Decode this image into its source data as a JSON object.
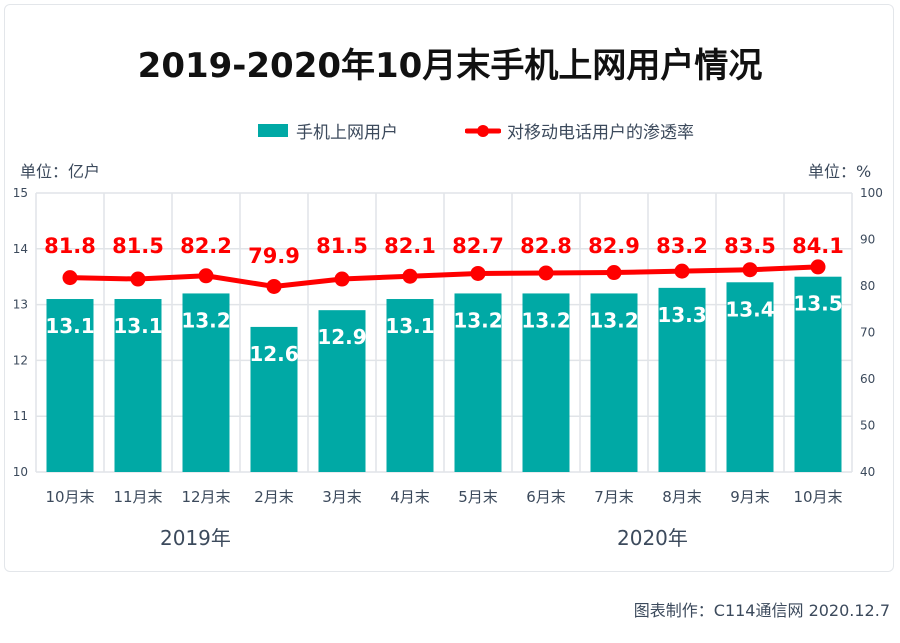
{
  "chart_data": {
    "type": "bar+line",
    "title": "2019-2020年10月末手机上网用户情况",
    "categories": [
      "10月末",
      "11月末",
      "12月末",
      "2月末",
      "3月末",
      "4月末",
      "5月末",
      "6月末",
      "7月末",
      "8月末",
      "9月末",
      "10月末"
    ],
    "series": [
      {
        "name": "手机上网用户",
        "type": "bar",
        "axis": "left",
        "values": [
          13.1,
          13.1,
          13.2,
          12.6,
          12.9,
          13.1,
          13.2,
          13.2,
          13.2,
          13.3,
          13.4,
          13.5
        ],
        "color": "#00a9a5"
      },
      {
        "name": "对移动电话用户的渗透率",
        "type": "line",
        "axis": "right",
        "values": [
          81.8,
          81.5,
          82.2,
          79.9,
          81.5,
          82.1,
          82.7,
          82.8,
          82.9,
          83.2,
          83.5,
          84.1
        ],
        "color": "#ff0000"
      }
    ],
    "left_axis": {
      "unit_label": "单位：亿户",
      "ylim": [
        10,
        15
      ],
      "ticks": [
        10,
        11,
        12,
        13,
        14,
        15
      ]
    },
    "right_axis": {
      "unit_label": "单位：%",
      "ylim": [
        40,
        100
      ],
      "ticks": [
        40,
        50,
        60,
        70,
        80,
        90,
        100
      ]
    },
    "year_labels": [
      "2019年",
      "2020年"
    ],
    "grid": true,
    "legend_position": "top"
  },
  "footer": "图表制作：C114通信网  2020.12.7"
}
